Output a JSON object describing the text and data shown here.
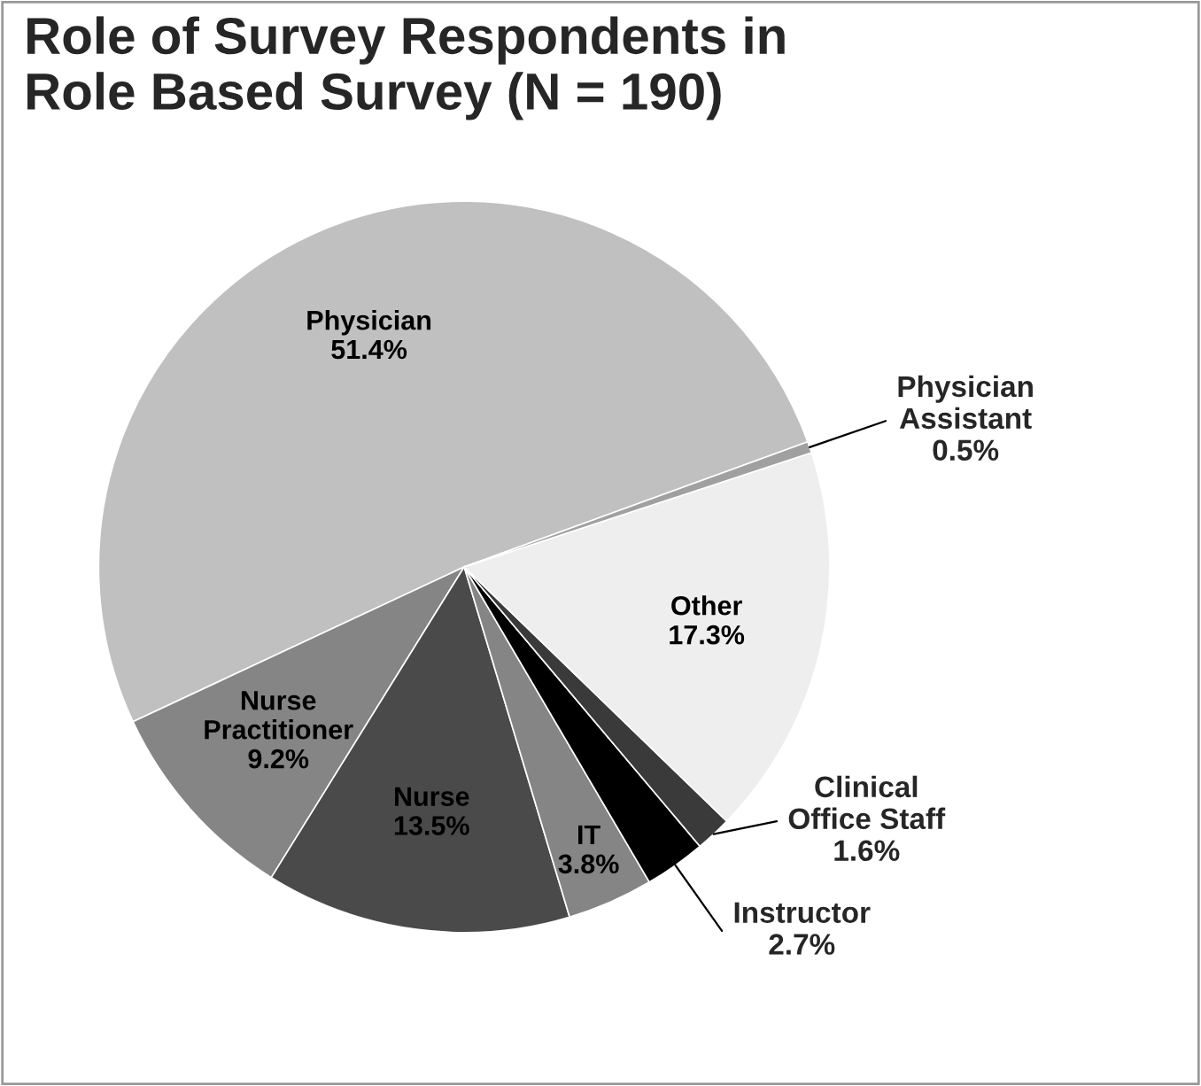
{
  "chart_data": {
    "type": "pie",
    "title": "Role of Survey Respondents in\nRole Based Survey (N = 190)",
    "categories": [
      "Physician",
      "Nurse\nPractitioner",
      "Nurse",
      "IT",
      "Instructor",
      "Clinical\nOffice Staff",
      "Other",
      "Physician\nAssistant"
    ],
    "values": [
      51.4,
      9.2,
      13.5,
      3.8,
      2.7,
      1.6,
      17.3,
      0.5
    ],
    "colors": [
      "#c0c0c0",
      "#858585",
      "#4a4a4a",
      "#858585",
      "#000000",
      "#3a3a3a",
      "#eeeeee",
      "#a0a0a0"
    ],
    "value_labels": [
      "51.4%",
      "9.2%",
      "13.5%",
      "3.8%",
      "2.7%",
      "1.6%",
      "17.3%",
      "0.5%"
    ],
    "legend": false
  }
}
